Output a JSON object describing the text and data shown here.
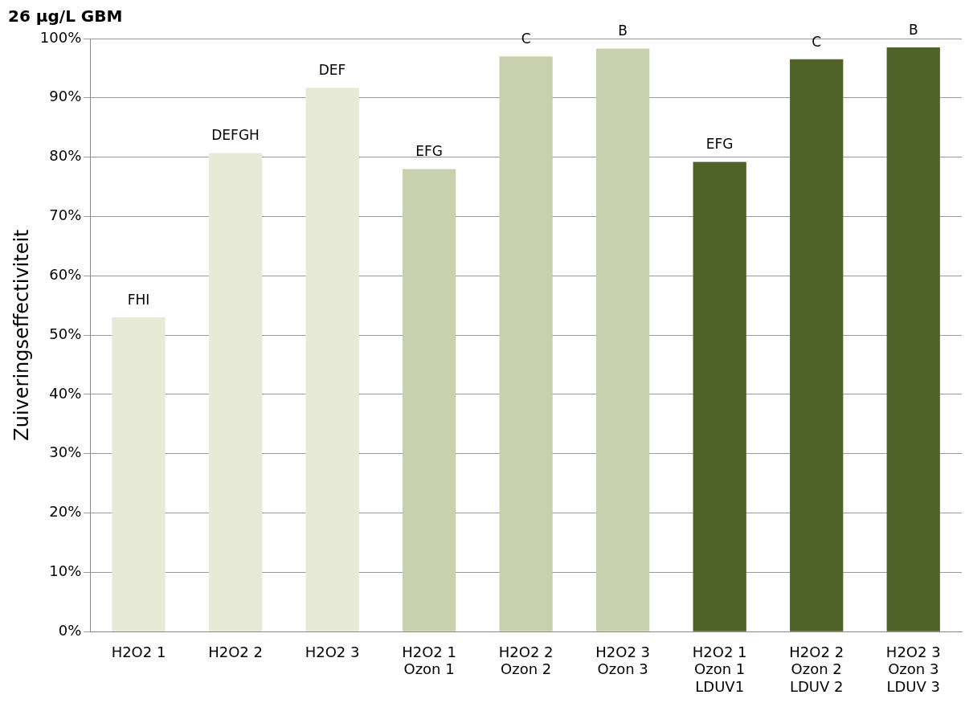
{
  "chart_data": {
    "type": "bar",
    "title": "26 µg/L GBM",
    "ylabel": "Zuiveringseffectiviteit",
    "categories": [
      "H2O2 1",
      "H2O2 2",
      "H2O2 3",
      "H2O2 1\nOzon 1",
      "H2O2 2\nOzon 2",
      "H2O2 3\nOzon 3",
      "H2O2 1\nOzon 1\nLDUV1",
      "H2O2 2\nOzon 2\nLDUV 2",
      "H2O2 3\nOzon 3\nLDUV 3"
    ],
    "values": [
      53,
      80.7,
      91.7,
      78,
      97,
      98.3,
      79.2,
      96.5,
      98.5
    ],
    "colors": [
      "#e6ead6",
      "#e6ead6",
      "#e6ead6",
      "#c8d0ad",
      "#c8d0ad",
      "#c8d0ad",
      "#4f6228",
      "#4f6228",
      "#4f6228"
    ],
    "value_labels": [
      "FHI",
      "DEFGH",
      "DEF",
      "EFG",
      "C",
      "B",
      "EFG",
      "C",
      "B"
    ],
    "ylim": [
      0,
      100
    ],
    "yticks": [
      {
        "value": 0,
        "label": "0%"
      },
      {
        "value": 10,
        "label": "10%"
      },
      {
        "value": 20,
        "label": "20%"
      },
      {
        "value": 30,
        "label": "30%"
      },
      {
        "value": 40,
        "label": "40%"
      },
      {
        "value": 50,
        "label": "50%"
      },
      {
        "value": 60,
        "label": "60%"
      },
      {
        "value": 70,
        "label": "70%"
      },
      {
        "value": 80,
        "label": "80%"
      },
      {
        "value": 90,
        "label": "90%"
      },
      {
        "value": 100,
        "label": "100%"
      }
    ],
    "grid": "y",
    "legend": false
  }
}
